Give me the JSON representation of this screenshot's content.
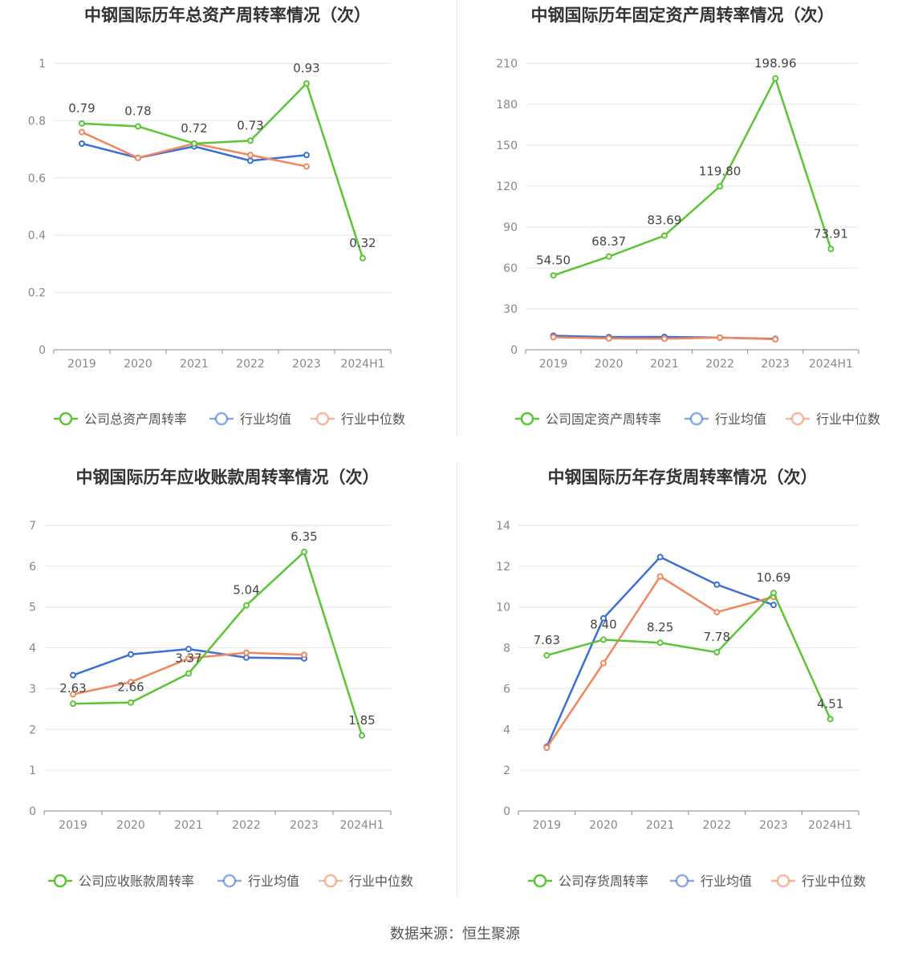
{
  "source_text": "数据来源：恒生聚源",
  "colors": {
    "company": "#5cc535",
    "average": "#3a6fd8",
    "median": "#f0875e"
  },
  "chart_data": [
    {
      "type": "line",
      "title": "中钢国际历年总资产周转率情况（次）",
      "categories": [
        "2019",
        "2020",
        "2021",
        "2022",
        "2023",
        "2024H1"
      ],
      "ylim": [
        0,
        1
      ],
      "yticks": [
        0,
        0.2,
        0.4,
        0.6,
        0.8,
        1
      ],
      "ytick_labels": [
        "0",
        "0.2",
        "0.4",
        "0.6",
        "0.8",
        "1"
      ],
      "series": [
        {
          "name": "公司总资产周转率",
          "key": "company",
          "values": [
            0.79,
            0.78,
            0.72,
            0.73,
            0.93,
            0.32
          ],
          "labels": [
            "0.79",
            "0.78",
            "0.72",
            "0.73",
            "0.93",
            "0.32"
          ]
        },
        {
          "name": "行业均值",
          "key": "average",
          "values": [
            0.72,
            0.67,
            0.71,
            0.66,
            0.68,
            null
          ]
        },
        {
          "name": "行业中位数",
          "key": "median",
          "values": [
            0.76,
            0.67,
            0.72,
            0.68,
            0.64,
            null
          ]
        }
      ],
      "legend_position": "bottom",
      "grid": true
    },
    {
      "type": "line",
      "title": "中钢国际历年固定资产周转率情况（次）",
      "categories": [
        "2019",
        "2020",
        "2021",
        "2022",
        "2023",
        "2024H1"
      ],
      "ylim": [
        0,
        210
      ],
      "yticks": [
        0,
        30,
        60,
        90,
        120,
        150,
        180,
        210
      ],
      "ytick_labels": [
        "0",
        "30",
        "60",
        "90",
        "120",
        "150",
        "180",
        "210"
      ],
      "series": [
        {
          "name": "公司固定资产周转率",
          "key": "company",
          "values": [
            54.5,
            68.37,
            83.69,
            119.8,
            198.96,
            73.91
          ],
          "labels": [
            "54.50",
            "68.37",
            "83.69",
            "119.80",
            "198.96",
            "73.91"
          ]
        },
        {
          "name": "行业均值",
          "key": "average",
          "values": [
            10.3,
            9.3,
            9.4,
            8.9,
            8.0,
            null
          ]
        },
        {
          "name": "行业中位数",
          "key": "median",
          "values": [
            9.2,
            8.3,
            8.1,
            8.9,
            7.7,
            null
          ]
        }
      ],
      "legend_position": "bottom",
      "grid": true
    },
    {
      "type": "line",
      "title": "中钢国际历年应收账款周转率情况（次）",
      "categories": [
        "2019",
        "2020",
        "2021",
        "2022",
        "2023",
        "2024H1"
      ],
      "ylim": [
        0,
        7
      ],
      "yticks": [
        0,
        1,
        2,
        3,
        4,
        5,
        6,
        7
      ],
      "ytick_labels": [
        "0",
        "1",
        "2",
        "3",
        "4",
        "5",
        "6",
        "7"
      ],
      "series": [
        {
          "name": "公司应收账款周转率",
          "key": "company",
          "values": [
            2.63,
            2.66,
            3.37,
            5.04,
            6.35,
            1.85
          ],
          "labels": [
            "2.63",
            "2.66",
            "3.37",
            "5.04",
            "6.35",
            "1.85"
          ]
        },
        {
          "name": "行业均值",
          "key": "average",
          "values": [
            3.33,
            3.84,
            3.97,
            3.76,
            3.74,
            null
          ]
        },
        {
          "name": "行业中位数",
          "key": "median",
          "values": [
            2.86,
            3.16,
            3.74,
            3.88,
            3.83,
            null
          ]
        }
      ],
      "legend_position": "bottom",
      "grid": true
    },
    {
      "type": "line",
      "title": "中钢国际历年存货周转率情况（次）",
      "categories": [
        "2019",
        "2020",
        "2021",
        "2022",
        "2023",
        "2024H1"
      ],
      "ylim": [
        0,
        14
      ],
      "yticks": [
        0,
        2,
        4,
        6,
        8,
        10,
        12,
        14
      ],
      "ytick_labels": [
        "0",
        "2",
        "4",
        "6",
        "8",
        "10",
        "12",
        "14"
      ],
      "series": [
        {
          "name": "公司存货周转率",
          "key": "company",
          "values": [
            7.63,
            8.4,
            8.25,
            7.78,
            10.69,
            4.51
          ],
          "labels": [
            "7.63",
            "8.40",
            "8.25",
            "7.78",
            "10.69",
            "4.51"
          ]
        },
        {
          "name": "行业均值",
          "key": "average",
          "values": [
            3.15,
            9.45,
            12.45,
            11.1,
            10.1,
            null
          ]
        },
        {
          "name": "行业中位数",
          "key": "median",
          "values": [
            3.1,
            7.25,
            11.5,
            9.75,
            10.5,
            null
          ]
        }
      ],
      "legend_position": "bottom",
      "grid": true
    }
  ]
}
